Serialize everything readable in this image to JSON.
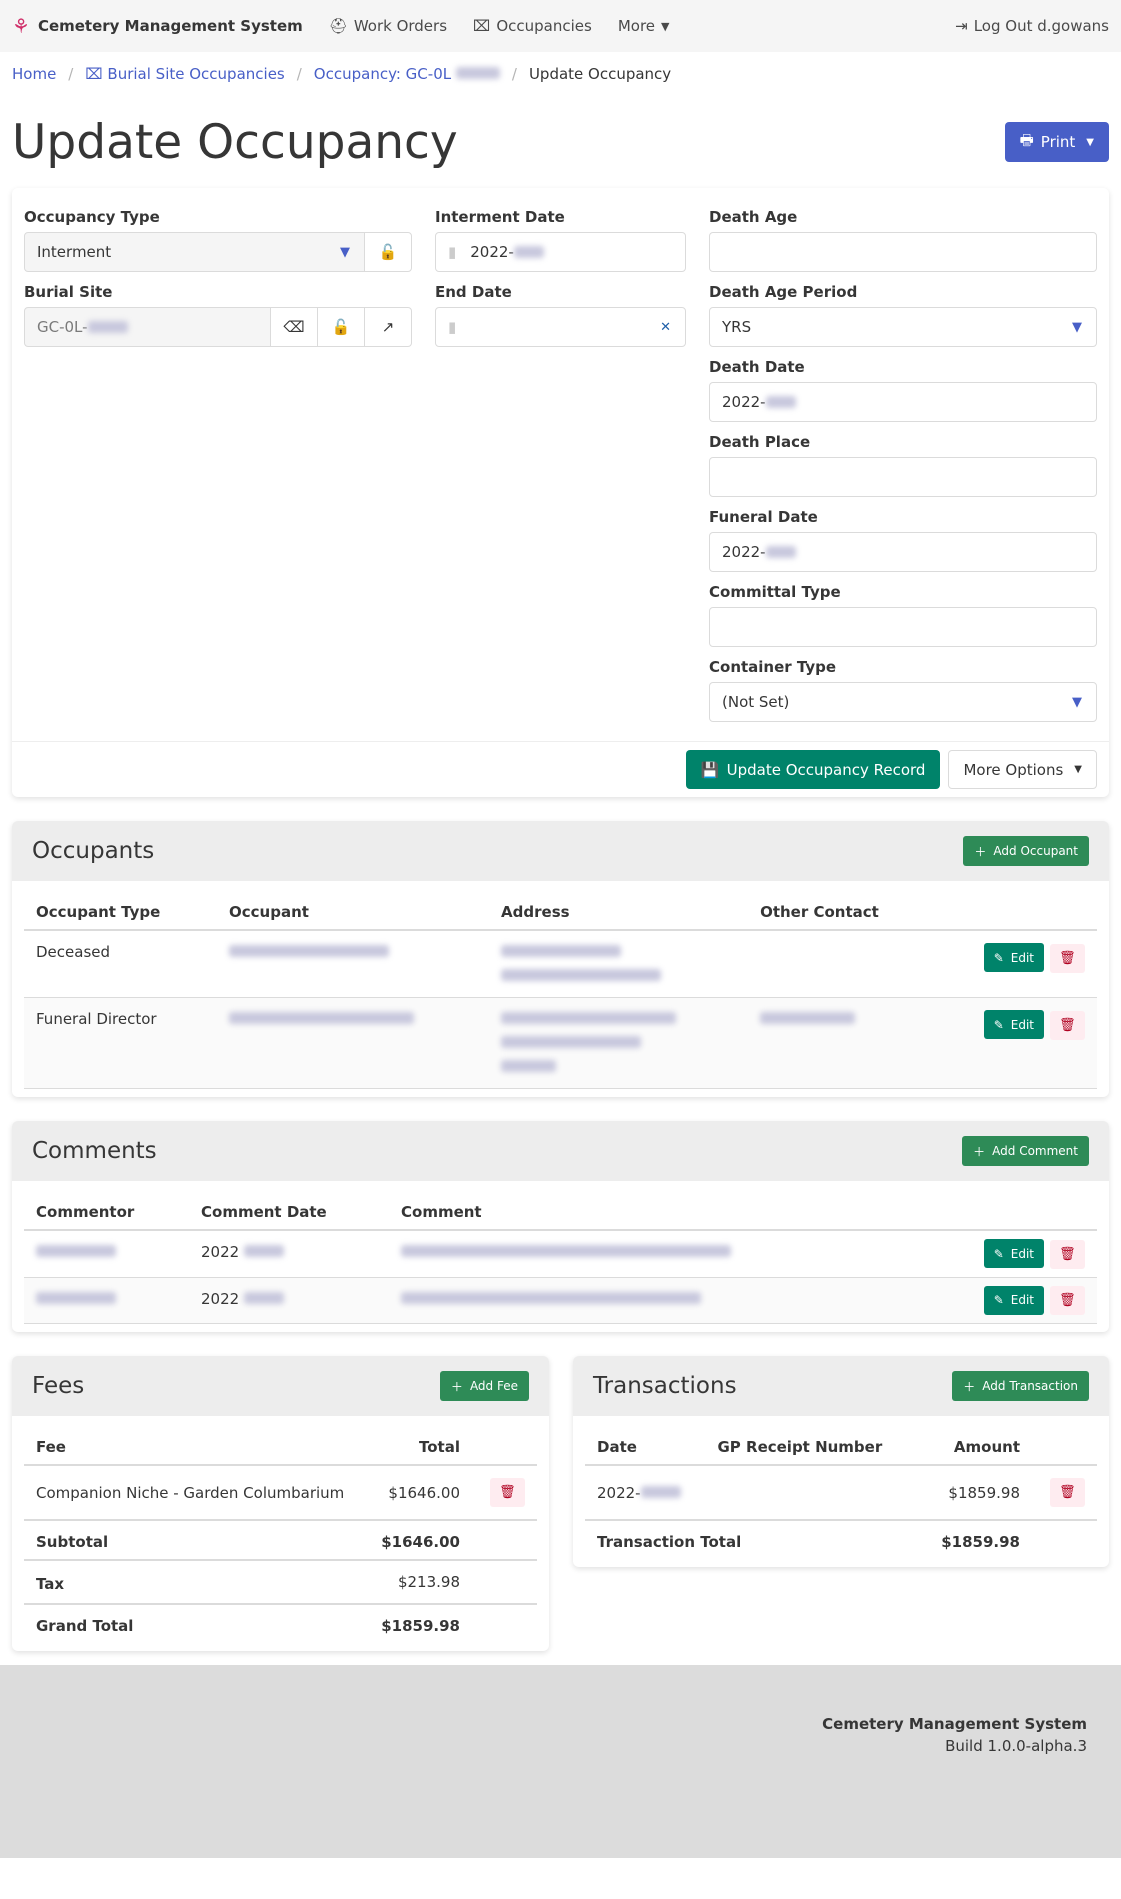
{
  "nav": {
    "brand": "Cemetery Management System",
    "work_orders": "Work Orders",
    "occupancies": "Occupancies",
    "more": "More",
    "logout": "Log Out d.gowans"
  },
  "breadcrumb": {
    "home": "Home",
    "burial_site_occupancies": "Burial Site Occupancies",
    "occupancy": "Occupancy: GC-0L",
    "current": "Update Occupancy"
  },
  "page": {
    "title": "Update Occupancy",
    "print": "Print"
  },
  "form": {
    "occupancy_type": {
      "label": "Occupancy Type",
      "value": "Interment"
    },
    "burial_site": {
      "label": "Burial Site",
      "value": "GC-0L-"
    },
    "interment_date": {
      "label": "Interment Date",
      "value": "2022-"
    },
    "end_date": {
      "label": "End Date",
      "value": ""
    },
    "death_age": {
      "label": "Death Age",
      "value": ""
    },
    "death_age_period": {
      "label": "Death Age Period",
      "value": "YRS"
    },
    "death_date": {
      "label": "Death Date",
      "value": "2022-"
    },
    "death_place": {
      "label": "Death Place",
      "value": ""
    },
    "funeral_date": {
      "label": "Funeral Date",
      "value": "2022-"
    },
    "committal_type": {
      "label": "Committal Type",
      "value": ""
    },
    "container_type": {
      "label": "Container Type",
      "value": "(Not Set)"
    },
    "update_button": "Update Occupancy Record",
    "more_options": "More Options"
  },
  "occupants": {
    "title": "Occupants",
    "add": "Add Occupant",
    "headers": [
      "Occupant Type",
      "Occupant",
      "Address",
      "Other Contact"
    ],
    "rows": [
      {
        "type": "Deceased"
      },
      {
        "type": "Funeral Director"
      }
    ],
    "edit": "Edit"
  },
  "comments": {
    "title": "Comments",
    "add": "Add Comment",
    "headers": [
      "Commentor",
      "Comment Date",
      "Comment"
    ],
    "rows": [
      {
        "date": "2022"
      },
      {
        "date": "2022"
      }
    ],
    "edit": "Edit"
  },
  "fees": {
    "title": "Fees",
    "add": "Add Fee",
    "headers": [
      "Fee",
      "Total"
    ],
    "rows": [
      {
        "fee": "Companion Niche - Garden Columbarium",
        "total": "$1646.00"
      }
    ],
    "subtotal_label": "Subtotal",
    "subtotal": "$1646.00",
    "tax_label": "Tax",
    "tax": "$213.98",
    "grand_label": "Grand Total",
    "grand": "$1859.98"
  },
  "transactions": {
    "title": "Transactions",
    "add": "Add Transaction",
    "headers": [
      "Date",
      "GP Receipt Number",
      "Amount"
    ],
    "rows": [
      {
        "date": "2022-",
        "amount": "$1859.98"
      }
    ],
    "total_label": "Transaction Total",
    "total": "$1859.98"
  },
  "footer": {
    "name": "Cemetery Management System",
    "build": "Build 1.0.0-alpha.3"
  },
  "colors": {
    "primary": "#485fc7",
    "success": "#00836a",
    "add": "#2e8b57",
    "danger": "#b00020"
  }
}
